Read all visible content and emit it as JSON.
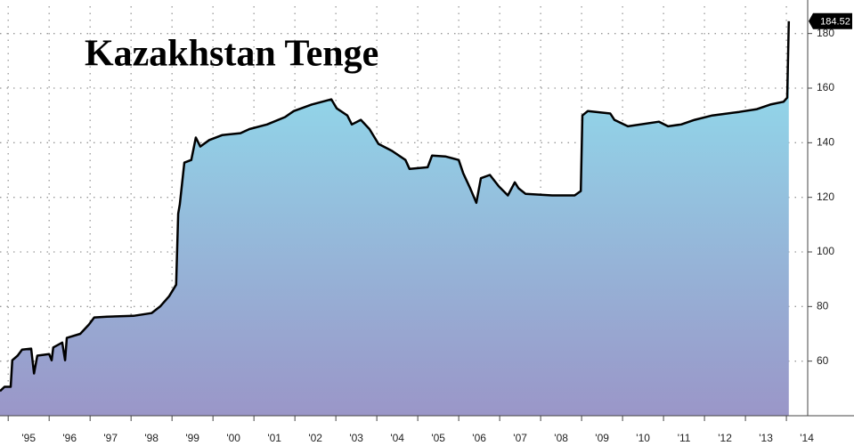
{
  "chart_data": {
    "type": "area",
    "title": "Kazakhstan Tenge",
    "x": [
      1994.8,
      1994.91,
      1995.06,
      1995.1,
      1995.23,
      1995.34,
      1995.56,
      1995.63,
      1995.71,
      1996.0,
      1996.06,
      1996.1,
      1996.32,
      1996.39,
      1996.43,
      1996.76,
      1996.97,
      1997.1,
      1997.41,
      1998.06,
      1998.5,
      1998.71,
      1998.93,
      1999.1,
      1999.15,
      1999.19,
      1999.26,
      1999.3,
      1999.47,
      1999.58,
      1999.69,
      1999.91,
      2000.23,
      2000.67,
      2000.89,
      2001.32,
      2001.76,
      2001.97,
      2002.41,
      2002.89,
      2003.02,
      2003.28,
      2003.39,
      2003.61,
      2003.82,
      2004.04,
      2004.37,
      2004.7,
      2004.8,
      2005.24,
      2005.35,
      2005.67,
      2006.0,
      2006.11,
      2006.28,
      2006.43,
      2006.54,
      2006.76,
      2006.98,
      2007.2,
      2007.37,
      2007.46,
      2007.63,
      2008.28,
      2008.83,
      2008.98,
      2009.02,
      2009.15,
      2009.7,
      2009.8,
      2010.13,
      2010.89,
      2011.11,
      2011.43,
      2011.76,
      2012.19,
      2012.85,
      2013.28,
      2013.61,
      2013.93,
      2014.02,
      2014.06
    ],
    "values": [
      49,
      50.6,
      50.6,
      60.3,
      62,
      64.2,
      64.6,
      55.5,
      62,
      62.6,
      60.3,
      65,
      66.8,
      60.3,
      68.5,
      70,
      73.4,
      76,
      76.3,
      76.6,
      77.6,
      80,
      83.8,
      88,
      114,
      117.4,
      127,
      132.7,
      133.7,
      141.9,
      138.6,
      141,
      142.8,
      143.5,
      145,
      146.7,
      149.4,
      151.6,
      154,
      155.9,
      152.6,
      150,
      146.7,
      148.4,
      145,
      139.6,
      137,
      133.7,
      130.4,
      131,
      135.3,
      135,
      133.7,
      128.8,
      123.3,
      118,
      127,
      128.2,
      124,
      120.7,
      125.5,
      123.3,
      121.3,
      120.7,
      120.7,
      122.3,
      150,
      151.6,
      150.7,
      148.4,
      146,
      147.7,
      146,
      146.7,
      148.4,
      150,
      151.3,
      152.3,
      154,
      155,
      156.5,
      184.52
    ],
    "color": "#000000",
    "fill_colors": [
      "#8fe3f0",
      "#9a96c8"
    ],
    "xlim": [
      1994.8,
      2014.52
    ],
    "xticks": [
      {
        "value": 1995,
        "label": "'95"
      },
      {
        "value": 1996,
        "label": "'96"
      },
      {
        "value": 1997,
        "label": "'97"
      },
      {
        "value": 1998,
        "label": "'98"
      },
      {
        "value": 1999,
        "label": "'99"
      },
      {
        "value": 2000,
        "label": "'00"
      },
      {
        "value": 2001,
        "label": "'01"
      },
      {
        "value": 2002,
        "label": "'02"
      },
      {
        "value": 2003,
        "label": "'03"
      },
      {
        "value": 2004,
        "label": "'04"
      },
      {
        "value": 2005,
        "label": "'05"
      },
      {
        "value": 2006,
        "label": "'06"
      },
      {
        "value": 2007,
        "label": "'07"
      },
      {
        "value": 2008,
        "label": "'08"
      },
      {
        "value": 2009,
        "label": "'09"
      },
      {
        "value": 2010,
        "label": "'10"
      },
      {
        "value": 2011,
        "label": "'11"
      },
      {
        "value": 2012,
        "label": "'12"
      },
      {
        "value": 2013,
        "label": "'13"
      },
      {
        "value": 2014,
        "label": "'14"
      }
    ],
    "ylim": [
      40,
      190
    ],
    "yticks": [
      60,
      80,
      100,
      120,
      140,
      160,
      180
    ],
    "grid": true
  }
}
